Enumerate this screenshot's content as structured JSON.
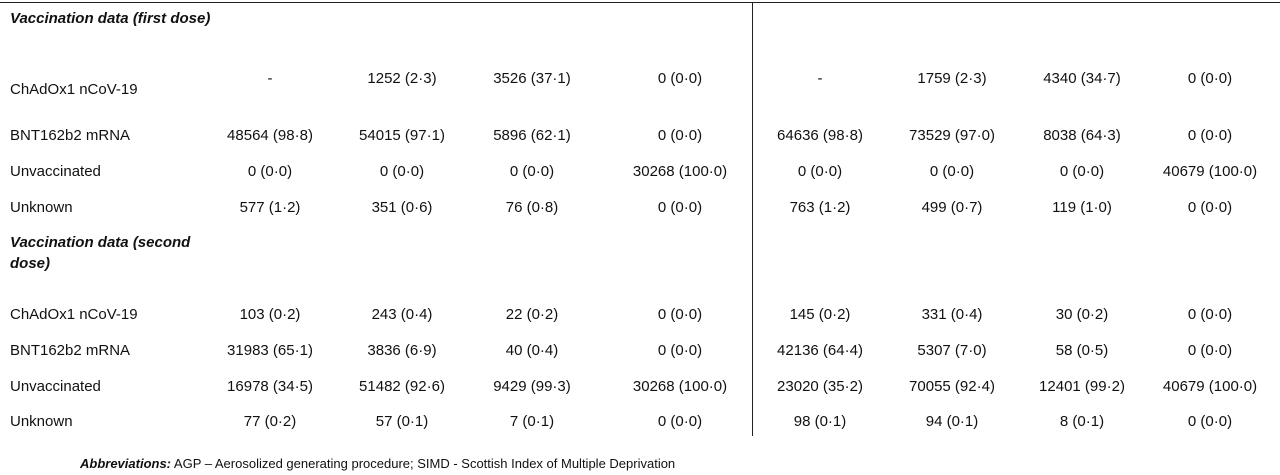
{
  "sections": [
    {
      "title": "Vaccination data (first dose)",
      "rows": [
        {
          "label": "ChAdOx1 nCoV-19",
          "values": [
            "-",
            "1252 (2·3)",
            "3526 (37·1)",
            "0 (0·0)",
            "-",
            "1759 (2·3)",
            "4340 (34·7)",
            "0 (0·0)"
          ]
        },
        {
          "label": "BNT162b2 mRNA",
          "values": [
            "48564 (98·8)",
            "54015 (97·1)",
            "5896 (62·1)",
            "0 (0·0)",
            "64636 (98·8)",
            "73529 (97·0)",
            "8038 (64·3)",
            "0 (0·0)"
          ]
        },
        {
          "label": "Unvaccinated",
          "values": [
            "0 (0·0)",
            "0 (0·0)",
            "0 (0·0)",
            "30268 (100·0)",
            "0 (0·0)",
            "0 (0·0)",
            "0 (0·0)",
            "40679 (100·0)"
          ]
        },
        {
          "label": "Unknown",
          "values": [
            "577 (1·2)",
            "351 (0·6)",
            "76 (0·8)",
            "0 (0·0)",
            "763 (1·2)",
            "499 (0·7)",
            "119 (1·0)",
            "0 (0·0)"
          ]
        }
      ]
    },
    {
      "title": "Vaccination data (second dose)",
      "rows": [
        {
          "label": "ChAdOx1 nCoV-19",
          "values": [
            "103 (0·2)",
            "243 (0·4)",
            "22 (0·2)",
            "0 (0·0)",
            "145 (0·2)",
            "331 (0·4)",
            "30 (0·2)",
            "0 (0·0)"
          ]
        },
        {
          "label": "BNT162b2 mRNA",
          "values": [
            "31983 (65·1)",
            "3836 (6·9)",
            "40 (0·4)",
            "0 (0·0)",
            "42136 (64·4)",
            "5307 (7·0)",
            "58 (0·5)",
            "0 (0·0)"
          ]
        },
        {
          "label": "Unvaccinated",
          "values": [
            "16978 (34·5)",
            "51482 (92·6)",
            "9429 (99·3)",
            "30268 (100·0)",
            "23020 (35·2)",
            "70055 (92·4)",
            "12401 (99·2)",
            "40679 (100·0)"
          ]
        },
        {
          "label": "Unknown",
          "values": [
            "77 (0·2)",
            "57 (0·1)",
            "7 (0·1)",
            "0 (0·0)",
            "98 (0·1)",
            "94 (0·1)",
            "8 (0·1)",
            "0 (0·0)"
          ]
        }
      ]
    }
  ],
  "footnote": {
    "label": "Abbreviations:",
    "text": "AGP – Aerosolized generating procedure; SIMD - Scottish Index of Multiple Deprivation"
  }
}
